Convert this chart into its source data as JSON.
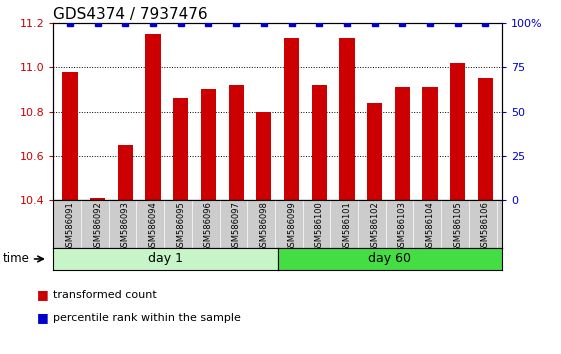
{
  "title": "GDS4374 / 7937476",
  "samples": [
    "GSM586091",
    "GSM586092",
    "GSM586093",
    "GSM586094",
    "GSM586095",
    "GSM586096",
    "GSM586097",
    "GSM586098",
    "GSM586099",
    "GSM586100",
    "GSM586101",
    "GSM586102",
    "GSM586103",
    "GSM586104",
    "GSM586105",
    "GSM586106"
  ],
  "red_values": [
    10.98,
    10.41,
    10.65,
    11.15,
    10.86,
    10.9,
    10.92,
    10.8,
    11.13,
    10.92,
    11.13,
    10.84,
    10.91,
    10.91,
    11.02,
    10.95
  ],
  "blue_values": [
    100,
    100,
    100,
    100,
    100,
    100,
    100,
    100,
    100,
    100,
    100,
    100,
    100,
    100,
    100,
    100
  ],
  "ylim_left": [
    10.4,
    11.2
  ],
  "ylim_right": [
    0,
    100
  ],
  "yticks_left": [
    10.4,
    10.6,
    10.8,
    11.0,
    11.2
  ],
  "yticks_right": [
    0,
    25,
    50,
    75,
    100
  ],
  "ytick_labels_right": [
    "0",
    "25",
    "50",
    "75",
    "100%"
  ],
  "groups": [
    {
      "label": "day 1",
      "start": 0,
      "end": 8,
      "color": "#c8f5c8"
    },
    {
      "label": "day 60",
      "start": 8,
      "end": 16,
      "color": "#44dd44"
    }
  ],
  "bar_color": "#CC0000",
  "blue_marker_color": "#0000CC",
  "bar_width": 0.55,
  "background_color": "#ffffff",
  "tick_label_color_left": "#CC0000",
  "tick_label_color_right": "#0000CC",
  "title_fontsize": 11,
  "legend_items": [
    {
      "label": "transformed count",
      "color": "#CC0000"
    },
    {
      "label": "percentile rank within the sample",
      "color": "#0000CC"
    }
  ],
  "xlabel_area_color": "#cccccc",
  "time_label": "time"
}
